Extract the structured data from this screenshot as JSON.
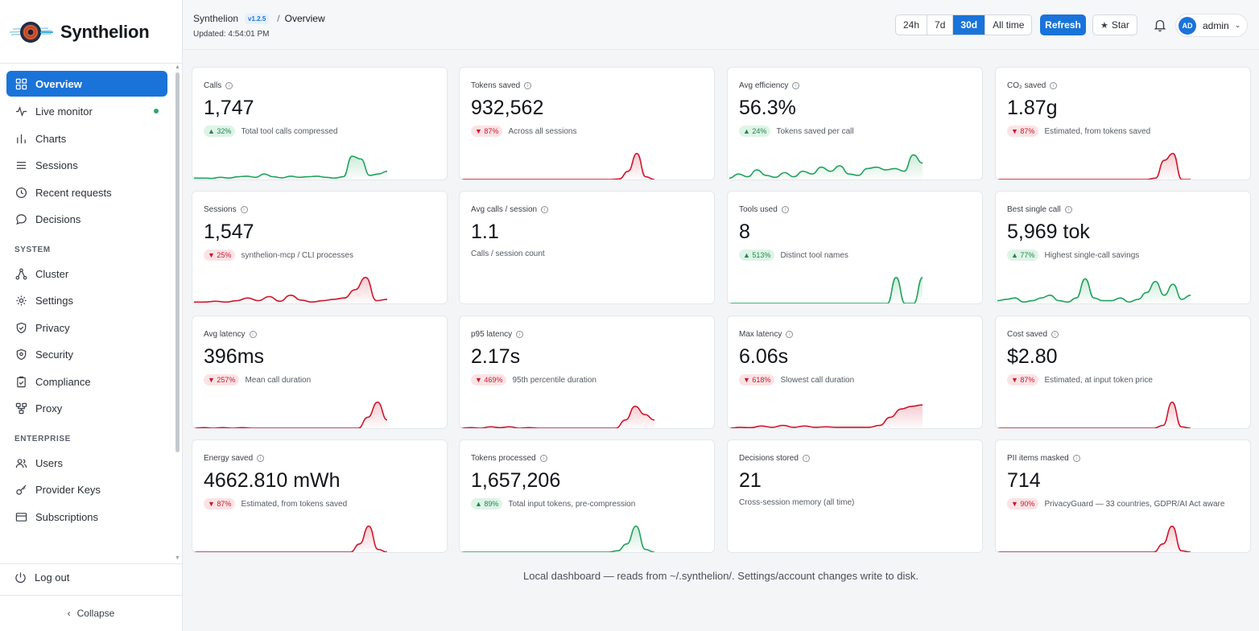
{
  "brand": {
    "name": "Synthelion"
  },
  "nav": {
    "items": [
      {
        "label": "Overview",
        "icon": "grid-icon"
      },
      {
        "label": "Live monitor",
        "icon": "pulse-icon"
      },
      {
        "label": "Charts",
        "icon": "bar-chart-icon"
      },
      {
        "label": "Sessions",
        "icon": "list-icon"
      },
      {
        "label": "Recent requests",
        "icon": "clock-icon"
      },
      {
        "label": "Decisions",
        "icon": "chat-bubble-icon"
      }
    ],
    "system_title": "SYSTEM",
    "system_items": [
      {
        "label": "Cluster",
        "icon": "cluster-icon"
      },
      {
        "label": "Settings",
        "icon": "gear-icon"
      },
      {
        "label": "Privacy",
        "icon": "shield-check-icon"
      },
      {
        "label": "Security",
        "icon": "shield-icon"
      },
      {
        "label": "Compliance",
        "icon": "clipboard-check-icon"
      },
      {
        "label": "Proxy",
        "icon": "proxy-icon"
      }
    ],
    "enterprise_title": "ENTERPRISE",
    "enterprise_items": [
      {
        "label": "Users",
        "icon": "users-icon"
      },
      {
        "label": "Provider Keys",
        "icon": "key-icon"
      },
      {
        "label": "Subscriptions",
        "icon": "card-icon"
      }
    ],
    "logout": "Log out",
    "collapse": "Collapse"
  },
  "header": {
    "app": "Synthelion",
    "version": "v1.2.5",
    "separator": "/",
    "page": "Overview",
    "updated": "Updated: 4:54:01 PM",
    "ranges": [
      "24h",
      "7d",
      "30d",
      "All time"
    ],
    "active_range": "30d",
    "refresh": "Refresh",
    "star": "Star",
    "user_initials": "AD",
    "user_name": "admin"
  },
  "colors": {
    "accent": "#1a73d9",
    "up": "#1fa35c",
    "down": "#d0152a"
  },
  "cards": [
    {
      "title": "Calls",
      "value": "1,747",
      "delta": "32%",
      "dir": "up",
      "sub": "Total tool calls compressed",
      "spark": "up"
    },
    {
      "title": "Tokens saved",
      "value": "932,562",
      "delta": "87%",
      "dir": "down",
      "sub": "Across all sessions",
      "spark": "down"
    },
    {
      "title": "Avg efficiency",
      "value": "56.3%",
      "delta": "24%",
      "dir": "up",
      "sub": "Tokens saved per call",
      "spark": "up"
    },
    {
      "title": "CO₂ saved",
      "value": "1.87g",
      "delta": "87%",
      "dir": "down",
      "sub": "Estimated, from tokens saved",
      "spark": "down"
    },
    {
      "title": "Sessions",
      "value": "1,547",
      "delta": "25%",
      "dir": "down",
      "sub": "synthelion-mcp / CLI processes",
      "spark": "down"
    },
    {
      "title": "Avg calls / session",
      "value": "1.1",
      "delta": "",
      "dir": "",
      "sub": "Calls / session count",
      "spark": ""
    },
    {
      "title": "Tools used",
      "value": "8",
      "delta": "513%",
      "dir": "up",
      "sub": "Distinct tool names",
      "spark": "up"
    },
    {
      "title": "Best single call",
      "value": "5,969 tok",
      "delta": "77%",
      "dir": "up",
      "sub": "Highest single-call savings",
      "spark": "up"
    },
    {
      "title": "Avg latency",
      "value": "396ms",
      "delta": "257%",
      "dir": "down",
      "sub": "Mean call duration",
      "spark": "down"
    },
    {
      "title": "p95 latency",
      "value": "2.17s",
      "delta": "469%",
      "dir": "down",
      "sub": "95th percentile duration",
      "spark": "down"
    },
    {
      "title": "Max latency",
      "value": "6.06s",
      "delta": "618%",
      "dir": "down",
      "sub": "Slowest call duration",
      "spark": "down"
    },
    {
      "title": "Cost saved",
      "value": "$2.80",
      "delta": "87%",
      "dir": "down",
      "sub": "Estimated, at input token price",
      "spark": "down"
    },
    {
      "title": "Energy saved",
      "value": "4662.810 mWh",
      "delta": "87%",
      "dir": "down",
      "sub": "Estimated, from tokens saved",
      "spark": "down"
    },
    {
      "title": "Tokens processed",
      "value": "1,657,206",
      "delta": "89%",
      "dir": "up",
      "sub": "Total input tokens, pre-compression",
      "spark": "up"
    },
    {
      "title": "Decisions stored",
      "value": "21",
      "delta": "",
      "dir": "",
      "sub": "Cross-session memory (all time)",
      "spark": ""
    },
    {
      "title": "PII items masked",
      "value": "714",
      "delta": "90%",
      "dir": "down",
      "sub": "PrivacyGuard — 33 countries, GDPR/AI Act aware",
      "spark": "down"
    }
  ],
  "footer": "Local dashboard — reads from ~/.synthelion/. Settings/account changes write to disk."
}
